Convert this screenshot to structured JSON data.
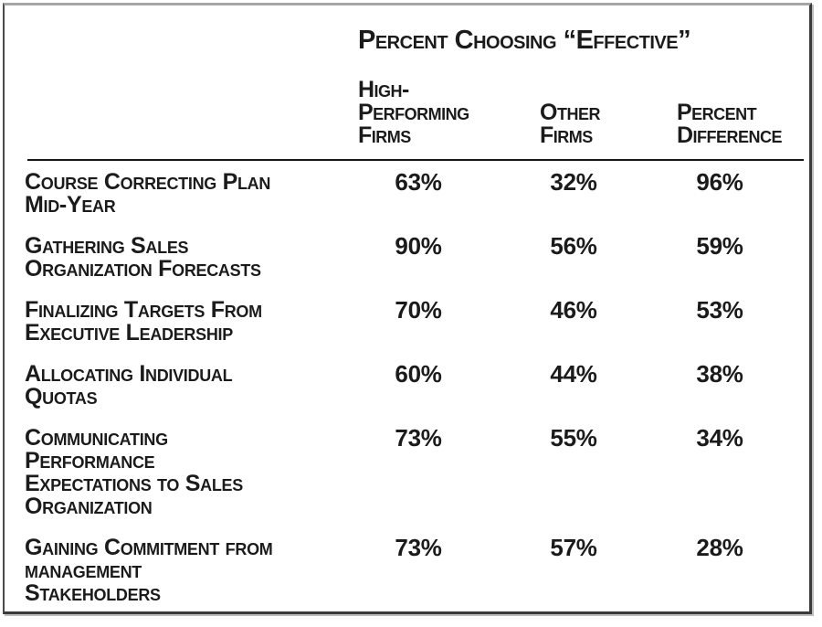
{
  "table": {
    "title": "Percent Choosing “Effective”",
    "column_headers": [
      "High-\nPerforming\nFirms",
      "Other\nFirms",
      "Percent\nDifference"
    ],
    "rows": [
      {
        "label": "Course Correcting Plan\nMid-Year",
        "values": [
          "63%",
          "32%",
          "96%"
        ]
      },
      {
        "label": "Gathering Sales\nOrganization Forecasts",
        "values": [
          "90%",
          "56%",
          "59%"
        ]
      },
      {
        "label": "Finalizing Targets From\nExecutive Leadership",
        "values": [
          "70%",
          "46%",
          "53%"
        ]
      },
      {
        "label": "Allocating Individual\nQuotas",
        "values": [
          "60%",
          "44%",
          "38%"
        ]
      },
      {
        "label": "Communicating\nPerformance\nExpectations to Sales\nOrganization",
        "values": [
          "73%",
          "55%",
          "34%"
        ]
      },
      {
        "label": "Gaining Commitment from\nmanagement\nStakeholders",
        "values": [
          "73%",
          "57%",
          "28%"
        ]
      }
    ]
  },
  "chart_data": {
    "type": "table",
    "title": "Percent Choosing “Effective”",
    "categories": [
      "Course Correcting Plan Mid-Year",
      "Gathering Sales Organization Forecasts",
      "Finalizing Targets From Executive Leadership",
      "Allocating Individual Quotas",
      "Communicating Performance Expectations to Sales Organization",
      "Gaining Commitment from management Stakeholders"
    ],
    "series": [
      {
        "name": "High-Performing Firms",
        "values": [
          63,
          90,
          70,
          60,
          73,
          73
        ]
      },
      {
        "name": "Other Firms",
        "values": [
          32,
          56,
          46,
          44,
          55,
          57
        ]
      },
      {
        "name": "Percent Difference",
        "values": [
          96,
          59,
          53,
          38,
          34,
          28
        ]
      }
    ],
    "unit": "%",
    "layout": "header rule above body; value columns centered; labels left-aligned"
  },
  "colors": {
    "text": "#1b1b1b",
    "background": "#ffffff",
    "frame_border": "#3a3a3a",
    "divider": "#161616"
  }
}
